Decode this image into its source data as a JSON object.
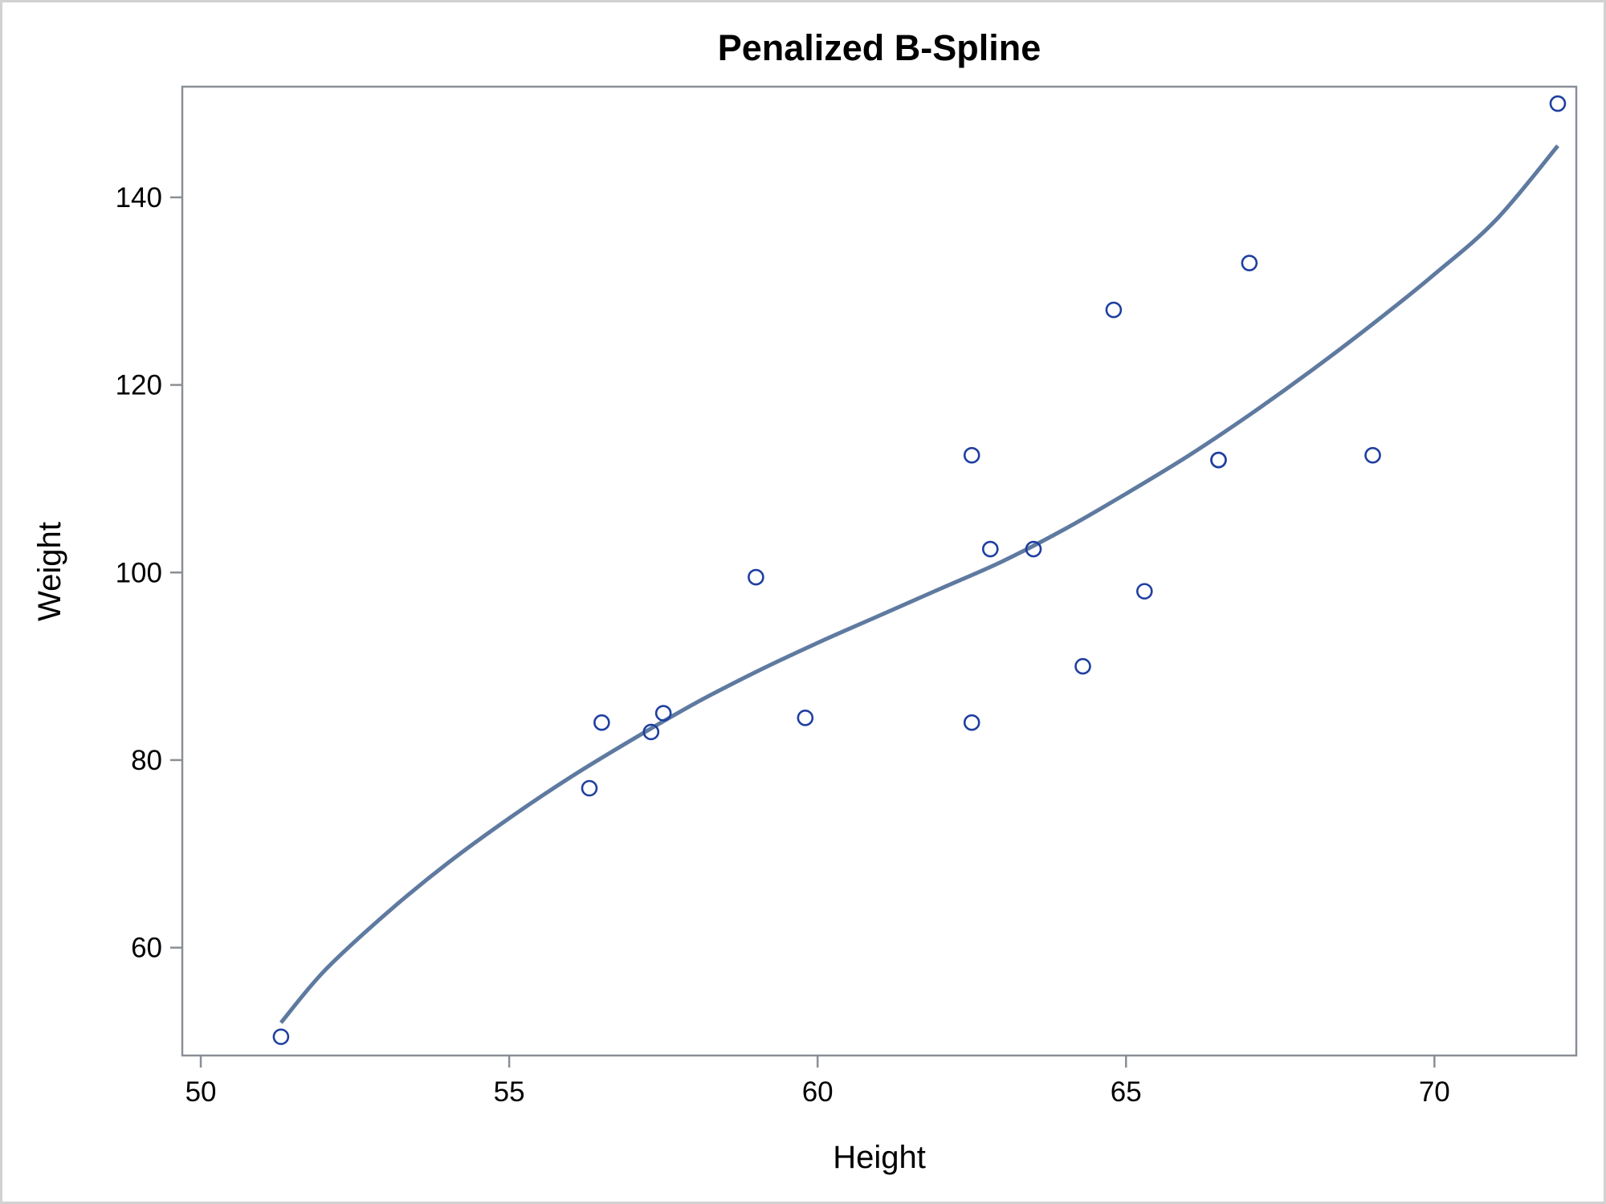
{
  "chart_data": {
    "type": "scatter",
    "title": "Penalized B-Spline",
    "xlabel": "Height",
    "ylabel": "Weight",
    "xlim": [
      49.7,
      72.3
    ],
    "ylim": [
      48.5,
      151.8
    ],
    "x_ticks": [
      50,
      55,
      60,
      65,
      70
    ],
    "y_ticks": [
      60,
      80,
      100,
      120,
      140
    ],
    "grid": false,
    "legend": "none",
    "series": [
      {
        "type": "scatter",
        "marker": "open-circle",
        "color": "#1f3fa0",
        "points": [
          {
            "x": 51.3,
            "y": 50.5
          },
          {
            "x": 56.3,
            "y": 77.0
          },
          {
            "x": 56.5,
            "y": 84.0
          },
          {
            "x": 57.3,
            "y": 83.0
          },
          {
            "x": 57.5,
            "y": 85.0
          },
          {
            "x": 59.0,
            "y": 99.5
          },
          {
            "x": 59.8,
            "y": 84.5
          },
          {
            "x": 62.5,
            "y": 112.5
          },
          {
            "x": 62.5,
            "y": 84.0
          },
          {
            "x": 62.8,
            "y": 102.5
          },
          {
            "x": 63.5,
            "y": 102.5
          },
          {
            "x": 64.3,
            "y": 90.0
          },
          {
            "x": 64.8,
            "y": 128.0
          },
          {
            "x": 65.3,
            "y": 98.0
          },
          {
            "x": 66.5,
            "y": 112.0
          },
          {
            "x": 66.5,
            "y": 112.0
          },
          {
            "x": 67.0,
            "y": 133.0
          },
          {
            "x": 69.0,
            "y": 112.5
          },
          {
            "x": 72.0,
            "y": 150.0
          }
        ]
      },
      {
        "type": "line",
        "color": "#5f7aa0",
        "points": [
          {
            "x": 51.3,
            "y": 52.0
          },
          {
            "x": 52.0,
            "y": 57.5
          },
          {
            "x": 53.0,
            "y": 63.6
          },
          {
            "x": 54.0,
            "y": 69.0
          },
          {
            "x": 55.0,
            "y": 73.8
          },
          {
            "x": 56.0,
            "y": 78.2
          },
          {
            "x": 57.0,
            "y": 82.2
          },
          {
            "x": 58.0,
            "y": 86.0
          },
          {
            "x": 59.0,
            "y": 89.4
          },
          {
            "x": 60.0,
            "y": 92.5
          },
          {
            "x": 61.0,
            "y": 95.4
          },
          {
            "x": 62.0,
            "y": 98.3
          },
          {
            "x": 63.0,
            "y": 101.2
          },
          {
            "x": 64.0,
            "y": 104.6
          },
          {
            "x": 65.0,
            "y": 108.4
          },
          {
            "x": 66.0,
            "y": 112.4
          },
          {
            "x": 67.0,
            "y": 116.8
          },
          {
            "x": 68.0,
            "y": 121.5
          },
          {
            "x": 69.0,
            "y": 126.5
          },
          {
            "x": 70.0,
            "y": 131.8
          },
          {
            "x": 71.0,
            "y": 137.6
          },
          {
            "x": 72.0,
            "y": 145.5
          }
        ]
      }
    ]
  }
}
